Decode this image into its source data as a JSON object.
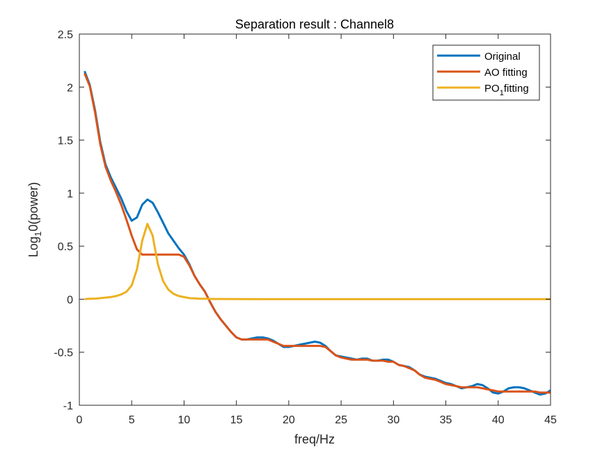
{
  "chart_data": {
    "type": "line",
    "title": "Separation result : Channel8",
    "xlabel": "freq/Hz",
    "ylabel": "Log10(power)",
    "ylabel_parts": [
      "Log",
      "1",
      "0(power)"
    ],
    "xlim": [
      0,
      45
    ],
    "ylim": [
      -1,
      2.5
    ],
    "xticks": [
      "0",
      "5",
      "10",
      "15",
      "20",
      "25",
      "30",
      "35",
      "40",
      "45"
    ],
    "yticks": [
      "-1",
      "-0.5",
      "0",
      "0.5",
      "1",
      "1.5",
      "2",
      "2.5"
    ],
    "grid": false,
    "legend_position": "top-right",
    "legend_labels": [
      [
        "Original"
      ],
      [
        "AO fitting"
      ],
      [
        "PO",
        "1",
        "fitting"
      ]
    ],
    "series": [
      {
        "name": "Original",
        "color": "#0072BD",
        "points": [
          [
            0.5,
            2.15
          ],
          [
            1,
            2.02
          ],
          [
            1.5,
            1.78
          ],
          [
            2,
            1.48
          ],
          [
            2.5,
            1.27
          ],
          [
            3,
            1.15
          ],
          [
            3.5,
            1.05
          ],
          [
            4,
            0.95
          ],
          [
            4.5,
            0.83
          ],
          [
            5,
            0.74
          ],
          [
            5.5,
            0.77
          ],
          [
            6,
            0.89
          ],
          [
            6.5,
            0.94
          ],
          [
            7,
            0.91
          ],
          [
            7.5,
            0.82
          ],
          [
            8,
            0.72
          ],
          [
            8.5,
            0.62
          ],
          [
            9,
            0.55
          ],
          [
            9.5,
            0.48
          ],
          [
            10,
            0.42
          ],
          [
            10.5,
            0.33
          ],
          [
            11,
            0.22
          ],
          [
            11.5,
            0.14
          ],
          [
            12,
            0.07
          ],
          [
            12.5,
            -0.03
          ],
          [
            13,
            -0.12
          ],
          [
            13.5,
            -0.19
          ],
          [
            14,
            -0.25
          ],
          [
            14.5,
            -0.31
          ],
          [
            15,
            -0.36
          ],
          [
            15.5,
            -0.38
          ],
          [
            16,
            -0.38
          ],
          [
            16.5,
            -0.37
          ],
          [
            17,
            -0.36
          ],
          [
            17.5,
            -0.36
          ],
          [
            18,
            -0.37
          ],
          [
            18.5,
            -0.39
          ],
          [
            19,
            -0.42
          ],
          [
            19.5,
            -0.45
          ],
          [
            20,
            -0.45
          ],
          [
            20.5,
            -0.44
          ],
          [
            21,
            -0.43
          ],
          [
            21.5,
            -0.42
          ],
          [
            22,
            -0.41
          ],
          [
            22.5,
            -0.4
          ],
          [
            23,
            -0.41
          ],
          [
            23.5,
            -0.44
          ],
          [
            24,
            -0.49
          ],
          [
            24.5,
            -0.53
          ],
          [
            25,
            -0.54
          ],
          [
            25.5,
            -0.55
          ],
          [
            26,
            -0.56
          ],
          [
            26.5,
            -0.57
          ],
          [
            27,
            -0.56
          ],
          [
            27.5,
            -0.56
          ],
          [
            28,
            -0.58
          ],
          [
            28.5,
            -0.58
          ],
          [
            29,
            -0.57
          ],
          [
            29.5,
            -0.57
          ],
          [
            30,
            -0.59
          ],
          [
            30.5,
            -0.62
          ],
          [
            31,
            -0.63
          ],
          [
            31.5,
            -0.64
          ],
          [
            32,
            -0.67
          ],
          [
            32.5,
            -0.71
          ],
          [
            33,
            -0.73
          ],
          [
            33.5,
            -0.74
          ],
          [
            34,
            -0.75
          ],
          [
            34.5,
            -0.77
          ],
          [
            35,
            -0.79
          ],
          [
            35.5,
            -0.8
          ],
          [
            36,
            -0.82
          ],
          [
            36.5,
            -0.84
          ],
          [
            37,
            -0.83
          ],
          [
            37.5,
            -0.82
          ],
          [
            38,
            -0.8
          ],
          [
            38.5,
            -0.81
          ],
          [
            39,
            -0.84
          ],
          [
            39.5,
            -0.88
          ],
          [
            40,
            -0.89
          ],
          [
            40.5,
            -0.87
          ],
          [
            41,
            -0.84
          ],
          [
            41.5,
            -0.83
          ],
          [
            42,
            -0.83
          ],
          [
            42.5,
            -0.84
          ],
          [
            43,
            -0.86
          ],
          [
            43.5,
            -0.88
          ],
          [
            44,
            -0.9
          ],
          [
            44.5,
            -0.89
          ],
          [
            45,
            -0.86
          ],
          [
            45.3,
            -0.83
          ]
        ]
      },
      {
        "name": "AO fitting",
        "color": "#D95319",
        "points": [
          [
            0.5,
            2.13
          ],
          [
            1,
            2.01
          ],
          [
            1.5,
            1.76
          ],
          [
            2,
            1.46
          ],
          [
            2.5,
            1.25
          ],
          [
            3,
            1.12
          ],
          [
            3.5,
            1.01
          ],
          [
            4,
            0.89
          ],
          [
            4.5,
            0.75
          ],
          [
            5,
            0.6
          ],
          [
            5.5,
            0.47
          ],
          [
            6,
            0.42
          ],
          [
            6.5,
            0.42
          ],
          [
            7,
            0.42
          ],
          [
            7.5,
            0.42
          ],
          [
            8,
            0.42
          ],
          [
            8.5,
            0.42
          ],
          [
            9,
            0.42
          ],
          [
            9.5,
            0.42
          ],
          [
            10,
            0.4
          ],
          [
            10.5,
            0.32
          ],
          [
            11,
            0.22
          ],
          [
            11.5,
            0.14
          ],
          [
            12,
            0.07
          ],
          [
            12.5,
            -0.03
          ],
          [
            13,
            -0.12
          ],
          [
            13.5,
            -0.19
          ],
          [
            14,
            -0.25
          ],
          [
            14.5,
            -0.31
          ],
          [
            15,
            -0.36
          ],
          [
            15.5,
            -0.38
          ],
          [
            16,
            -0.38
          ],
          [
            16.5,
            -0.38
          ],
          [
            17,
            -0.38
          ],
          [
            17.5,
            -0.38
          ],
          [
            18,
            -0.38
          ],
          [
            18.5,
            -0.4
          ],
          [
            19,
            -0.42
          ],
          [
            19.5,
            -0.44
          ],
          [
            20,
            -0.44
          ],
          [
            20.5,
            -0.44
          ],
          [
            21,
            -0.44
          ],
          [
            21.5,
            -0.44
          ],
          [
            22,
            -0.44
          ],
          [
            22.5,
            -0.44
          ],
          [
            23,
            -0.44
          ],
          [
            23.5,
            -0.45
          ],
          [
            24,
            -0.49
          ],
          [
            24.5,
            -0.53
          ],
          [
            25,
            -0.55
          ],
          [
            25.5,
            -0.56
          ],
          [
            26,
            -0.57
          ],
          [
            26.5,
            -0.57
          ],
          [
            27,
            -0.57
          ],
          [
            27.5,
            -0.57
          ],
          [
            28,
            -0.58
          ],
          [
            28.5,
            -0.58
          ],
          [
            29,
            -0.58
          ],
          [
            29.5,
            -0.59
          ],
          [
            30,
            -0.59
          ],
          [
            30.5,
            -0.62
          ],
          [
            31,
            -0.63
          ],
          [
            31.5,
            -0.65
          ],
          [
            32,
            -0.67
          ],
          [
            32.5,
            -0.71
          ],
          [
            33,
            -0.74
          ],
          [
            33.5,
            -0.75
          ],
          [
            34,
            -0.76
          ],
          [
            34.5,
            -0.78
          ],
          [
            35,
            -0.8
          ],
          [
            35.5,
            -0.81
          ],
          [
            36,
            -0.82
          ],
          [
            36.5,
            -0.83
          ],
          [
            37,
            -0.83
          ],
          [
            37.5,
            -0.83
          ],
          [
            38,
            -0.83
          ],
          [
            38.5,
            -0.84
          ],
          [
            39,
            -0.85
          ],
          [
            39.5,
            -0.86
          ],
          [
            40,
            -0.87
          ],
          [
            40.5,
            -0.87
          ],
          [
            41,
            -0.87
          ],
          [
            41.5,
            -0.87
          ],
          [
            42,
            -0.87
          ],
          [
            42.5,
            -0.87
          ],
          [
            43,
            -0.87
          ],
          [
            43.5,
            -0.87
          ],
          [
            44,
            -0.88
          ],
          [
            44.5,
            -0.88
          ],
          [
            45,
            -0.88
          ]
        ]
      },
      {
        "name": "PO1fitting",
        "color": "#EDB120",
        "points": [
          [
            0.5,
            0.0
          ],
          [
            1,
            0.005
          ],
          [
            1.5,
            0.005
          ],
          [
            2,
            0.01
          ],
          [
            2.5,
            0.015
          ],
          [
            3,
            0.02
          ],
          [
            3.5,
            0.03
          ],
          [
            4,
            0.045
          ],
          [
            4.5,
            0.07
          ],
          [
            5,
            0.13
          ],
          [
            5.5,
            0.28
          ],
          [
            6,
            0.55
          ],
          [
            6.5,
            0.71
          ],
          [
            7,
            0.6
          ],
          [
            7.5,
            0.33
          ],
          [
            8,
            0.17
          ],
          [
            8.5,
            0.09
          ],
          [
            9,
            0.05
          ],
          [
            9.5,
            0.03
          ],
          [
            10,
            0.02
          ],
          [
            10.5,
            0.01
          ],
          [
            11,
            0.008
          ],
          [
            11.5,
            0.005
          ],
          [
            12,
            0.004
          ],
          [
            12.5,
            0.003
          ],
          [
            13,
            0.002
          ],
          [
            15,
            0.001
          ],
          [
            20,
            0.0
          ],
          [
            25,
            0.0
          ],
          [
            30,
            0.0
          ],
          [
            35,
            0.0
          ],
          [
            40,
            0.0
          ],
          [
            45,
            0.0
          ]
        ]
      }
    ]
  }
}
